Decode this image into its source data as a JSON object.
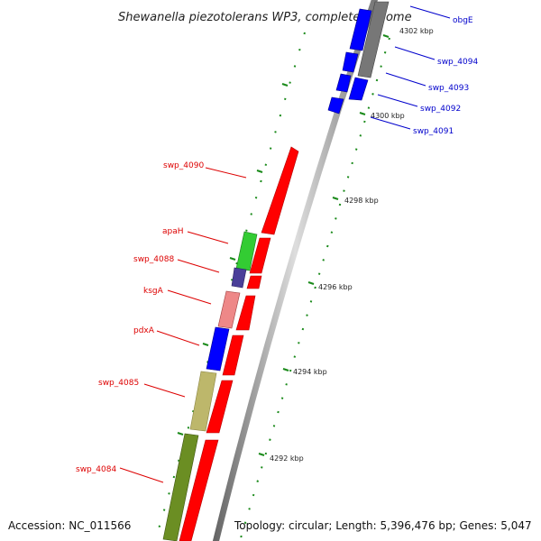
{
  "title": "Shewanella piezotolerans WP3, complete genome",
  "footer": {
    "accession": "Accession: NC_011566",
    "topology": "Topology: circular; Length: 5,396,476 bp; Genes: 5,047"
  },
  "ticks": [
    {
      "label": "4302 kbp"
    },
    {
      "label": "4300 kbp"
    },
    {
      "label": "4298 kbp"
    },
    {
      "label": "4296 kbp"
    },
    {
      "label": "4294 kbp"
    },
    {
      "label": "4292 kbp"
    }
  ],
  "genes_left": [
    {
      "label": "swp_4090"
    },
    {
      "label": "apaH"
    },
    {
      "label": "swp_4088"
    },
    {
      "label": "ksgA"
    },
    {
      "label": "pdxA"
    },
    {
      "label": "swp_4085"
    },
    {
      "label": "swp_4084"
    }
  ],
  "genes_right": [
    {
      "label": "obgE"
    },
    {
      "label": "swp_4094"
    },
    {
      "label": "swp_4093"
    },
    {
      "label": "swp_4092"
    },
    {
      "label": "swp_4091"
    }
  ],
  "colors": {
    "gene_forward": "#ff0000",
    "gene_label_left": "#dd0000",
    "gene_label_right": "#0000cc",
    "gene_blue": "#0000ff",
    "green": "#33cc33",
    "purple": "#4a3f99",
    "pink": "#ee8888",
    "khaki": "#bdb76b",
    "olive": "#6b8e23",
    "grey": "#777777",
    "tick_dash": "#1a8a1a"
  }
}
